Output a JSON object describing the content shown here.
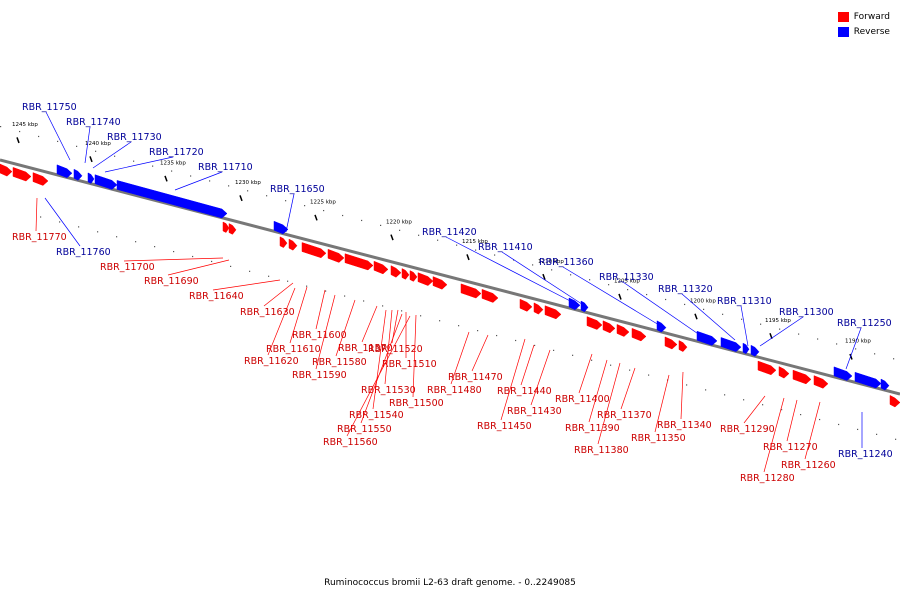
{
  "legend": [
    {
      "label": "Forward",
      "color": "#ff0000"
    },
    {
      "label": "Reverse",
      "color": "#0000ff"
    }
  ],
  "caption": "Ruminococcus bromii L2-63 draft genome. - 0..2249085",
  "colors": {
    "forward": "#ff0000",
    "reverse": "#0000ff",
    "backbone": "#777777",
    "label_forward": "#cc0000",
    "label_reverse": "#000099"
  },
  "scale_labels": [
    "1245 kbp",
    "1240 kbp",
    "1235 kbp",
    "1230 kbp",
    "1225 kbp",
    "1220 kbp",
    "1215 kbp",
    "1210 kbp",
    "1205 kbp",
    "1200 kbp",
    "1195 kbp",
    "1190 kbp"
  ],
  "genes": [
    {
      "name": "RBR_11750",
      "strand": "reverse"
    },
    {
      "name": "RBR_11740",
      "strand": "reverse"
    },
    {
      "name": "RBR_11730",
      "strand": "reverse"
    },
    {
      "name": "RBR_11720",
      "strand": "reverse"
    },
    {
      "name": "RBR_11710",
      "strand": "reverse"
    },
    {
      "name": "RBR_11650",
      "strand": "reverse"
    },
    {
      "name": "RBR_11420",
      "strand": "reverse"
    },
    {
      "name": "RBR_11410",
      "strand": "reverse"
    },
    {
      "name": "RBR_11360",
      "strand": "reverse"
    },
    {
      "name": "RBR_11330",
      "strand": "reverse"
    },
    {
      "name": "RBR_11320",
      "strand": "reverse"
    },
    {
      "name": "RBR_11310",
      "strand": "reverse"
    },
    {
      "name": "RBR_11300",
      "strand": "reverse"
    },
    {
      "name": "RBR_11250",
      "strand": "reverse"
    },
    {
      "name": "RBR_11760",
      "strand": "reverse"
    },
    {
      "name": "RBR_11240",
      "strand": "reverse"
    },
    {
      "name": "RBR_11770",
      "strand": "forward"
    },
    {
      "name": "RBR_11700",
      "strand": "forward"
    },
    {
      "name": "RBR_11690",
      "strand": "forward"
    },
    {
      "name": "RBR_11640",
      "strand": "forward"
    },
    {
      "name": "RBR_11630",
      "strand": "forward"
    },
    {
      "name": "RBR_11600",
      "strand": "forward"
    },
    {
      "name": "RBR_11610",
      "strand": "forward"
    },
    {
      "name": "RBR_11620",
      "strand": "forward"
    },
    {
      "name": "RBR_11570",
      "strand": "forward"
    },
    {
      "name": "RBR_11580",
      "strand": "forward"
    },
    {
      "name": "RBR_11590",
      "strand": "forward"
    },
    {
      "name": "RBR_11520",
      "strand": "forward"
    },
    {
      "name": "RBR_11510",
      "strand": "forward"
    },
    {
      "name": "RBR_11530",
      "strand": "forward"
    },
    {
      "name": "RBR_11480",
      "strand": "forward"
    },
    {
      "name": "RBR_11500",
      "strand": "forward"
    },
    {
      "name": "RBR_11540",
      "strand": "forward"
    },
    {
      "name": "RBR_11550",
      "strand": "forward"
    },
    {
      "name": "RBR_11560",
      "strand": "forward"
    },
    {
      "name": "RBR_11470",
      "strand": "forward"
    },
    {
      "name": "RBR_11440",
      "strand": "forward"
    },
    {
      "name": "RBR_11430",
      "strand": "forward"
    },
    {
      "name": "RBR_11450",
      "strand": "forward"
    },
    {
      "name": "RBR_11400",
      "strand": "forward"
    },
    {
      "name": "RBR_11370",
      "strand": "forward"
    },
    {
      "name": "RBR_11390",
      "strand": "forward"
    },
    {
      "name": "RBR_11350",
      "strand": "forward"
    },
    {
      "name": "RBR_11380",
      "strand": "forward"
    },
    {
      "name": "RBR_11340",
      "strand": "forward"
    },
    {
      "name": "RBR_11290",
      "strand": "forward"
    },
    {
      "name": "RBR_11270",
      "strand": "forward"
    },
    {
      "name": "RBR_11260",
      "strand": "forward"
    },
    {
      "name": "RBR_11280",
      "strand": "forward"
    }
  ]
}
